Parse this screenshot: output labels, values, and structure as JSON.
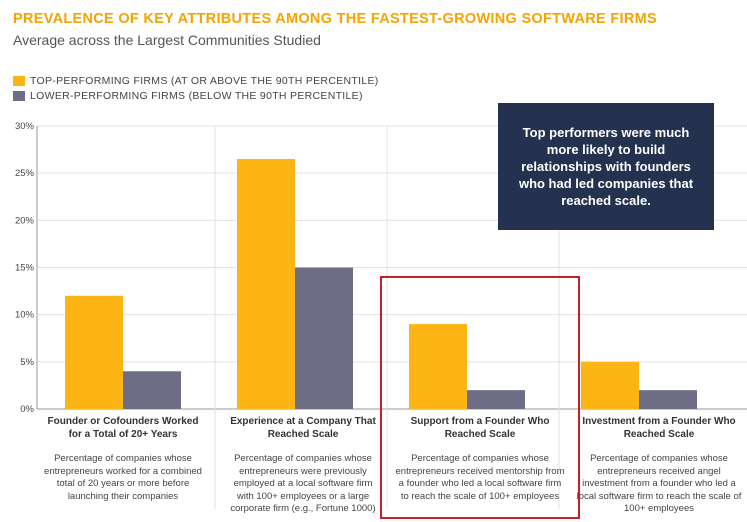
{
  "title": "PREVALENCE OF KEY ATTRIBUTES AMONG THE FASTEST-GROWING SOFTWARE FIRMS",
  "subtitle": "Average across the Largest Communities Studied",
  "legend": [
    {
      "label": "TOP-PERFORMING FIRMS (AT OR ABOVE THE 90TH PERCENTILE)",
      "color": "#fdb515"
    },
    {
      "label": "LOWER-PERFORMING FIRMS (BELOW THE 90TH PERCENTILE)",
      "color": "#6d6e86"
    }
  ],
  "callout": "Top performers were much more likely to build relationships with founders who had led companies that reached scale.",
  "categories_text": [
    {
      "label": "Founder or Cofounders Worked for a Total of 20+ Years",
      "desc": "Percentage of companies whose entrepreneurs worked for a combined total of 20 years or more before launching their companies"
    },
    {
      "label": "Experience at a Company That Reached Scale",
      "desc": "Percentage of companies whose entrepreneurs were previously employed at a local software firm with 100+ employees or a large corporate firm (e.g., Fortune 1000)"
    },
    {
      "label": "Support from a Founder Who Reached Scale",
      "desc": "Percentage of companies whose entrepreneurs received mentorship from a founder who led a local software firm to reach the scale of 100+ employees"
    },
    {
      "label": "Investment from a Founder Who Reached Scale",
      "desc": "Percentage of companies whose entrepreneurs received angel investment from a founder who led a local software firm to reach the scale of 100+ employees"
    }
  ],
  "chart_data": {
    "type": "bar",
    "title": "PREVALENCE OF KEY ATTRIBUTES AMONG THE FASTEST-GROWING SOFTWARE FIRMS",
    "subtitle": "Average across the Largest Communities Studied",
    "categories": [
      "Founder or Cofounders Worked for a Total of 20+ Years",
      "Experience at a Company That Reached Scale",
      "Support from a Founder Who Reached Scale",
      "Investment from a Founder Who Reached Scale"
    ],
    "series": [
      {
        "name": "TOP-PERFORMING FIRMS (AT OR ABOVE THE 90TH PERCENTILE)",
        "values": [
          12,
          26.5,
          9,
          5
        ],
        "color": "#fdb515"
      },
      {
        "name": "LOWER-PERFORMING FIRMS (BELOW THE 90TH PERCENTILE)",
        "values": [
          4,
          15,
          2,
          2
        ],
        "color": "#6d6e86"
      }
    ],
    "ylim": [
      0,
      30
    ],
    "yticks": [
      "0%",
      "5%",
      "10%",
      "15%",
      "20%",
      "25%",
      "30%"
    ],
    "grid": true,
    "legend": "top-left",
    "highlighted_category": "Support from a Founder Who Reached Scale"
  }
}
